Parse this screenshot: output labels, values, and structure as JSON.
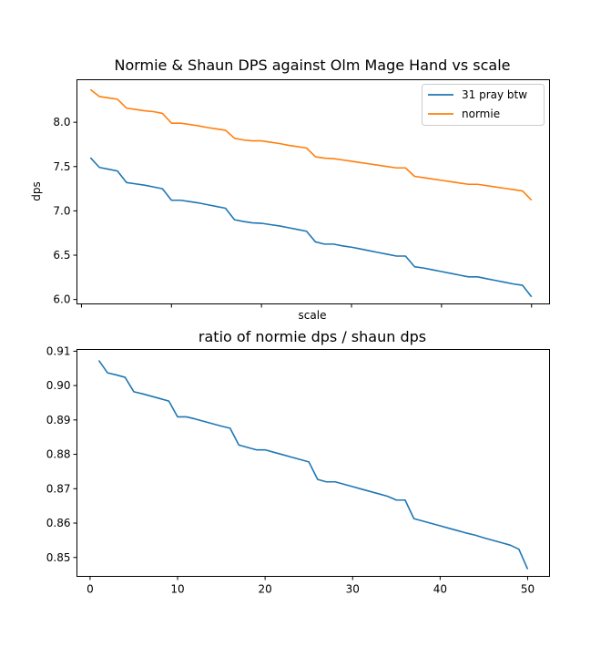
{
  "chart_data": [
    {
      "type": "line",
      "title": "Normie & Shaun DPS against Olm Mage Hand vs scale",
      "xlabel": "scale",
      "ylabel": "dps",
      "xlim": [
        -0.5,
        52
      ],
      "ylim": [
        5.95,
        8.48
      ],
      "xticks": [
        0,
        10,
        20,
        30,
        40,
        50
      ],
      "xtick_labels_visible": false,
      "yticks": [
        6.0,
        6.5,
        7.0,
        7.5,
        8.0
      ],
      "ytick_labels": [
        "6.0",
        "6.5",
        "7.0",
        "7.5",
        "8.0"
      ],
      "legend": {
        "position": "top-right"
      },
      "x": [
        1,
        2,
        3,
        4,
        5,
        6,
        7,
        8,
        9,
        10,
        11,
        12,
        13,
        14,
        15,
        16,
        17,
        18,
        19,
        20,
        21,
        22,
        23,
        24,
        25,
        26,
        27,
        28,
        29,
        30,
        31,
        32,
        33,
        34,
        35,
        36,
        37,
        38,
        39,
        40,
        41,
        42,
        43,
        44,
        45,
        46,
        47,
        48,
        49,
        50
      ],
      "series": [
        {
          "name": "31 pray btw",
          "color": "#1f77b4",
          "values": [
            7.6,
            7.49,
            7.47,
            7.45,
            7.32,
            7.305,
            7.29,
            7.27,
            7.25,
            7.12,
            7.12,
            7.105,
            7.09,
            7.07,
            7.05,
            7.03,
            6.9,
            6.88,
            6.865,
            6.86,
            6.845,
            6.83,
            6.81,
            6.79,
            6.77,
            6.65,
            6.625,
            6.625,
            6.605,
            6.59,
            6.57,
            6.55,
            6.53,
            6.51,
            6.49,
            6.49,
            6.37,
            6.355,
            6.335,
            6.315,
            6.295,
            6.275,
            6.255,
            6.255,
            6.235,
            6.215,
            6.195,
            6.175,
            6.16,
            6.03
          ]
        },
        {
          "name": "normie",
          "color": "#ff7f0e",
          "values": [
            8.37,
            8.29,
            8.275,
            8.26,
            8.16,
            8.145,
            8.13,
            8.12,
            8.1,
            7.99,
            7.99,
            7.975,
            7.96,
            7.94,
            7.925,
            7.91,
            7.82,
            7.8,
            7.79,
            7.79,
            7.775,
            7.76,
            7.74,
            7.725,
            7.71,
            7.61,
            7.595,
            7.59,
            7.575,
            7.56,
            7.545,
            7.53,
            7.515,
            7.5,
            7.485,
            7.485,
            7.39,
            7.375,
            7.36,
            7.345,
            7.33,
            7.315,
            7.3,
            7.3,
            7.285,
            7.27,
            7.255,
            7.24,
            7.225,
            7.12
          ]
        }
      ]
    },
    {
      "type": "line",
      "title": "ratio of normie dps / shaun dps",
      "xlabel": "",
      "ylabel": "",
      "xlim": [
        -1.5,
        52.5
      ],
      "ylim": [
        0.8445,
        0.9105
      ],
      "xticks": [
        0,
        10,
        20,
        30,
        40,
        50
      ],
      "xtick_labels": [
        "0",
        "10",
        "20",
        "30",
        "40",
        "50"
      ],
      "yticks": [
        0.85,
        0.86,
        0.87,
        0.88,
        0.89,
        0.9,
        0.91
      ],
      "ytick_labels": [
        "0.85",
        "0.86",
        "0.87",
        "0.88",
        "0.89",
        "0.90",
        "0.91"
      ],
      "x": [
        1,
        2,
        3,
        4,
        5,
        6,
        7,
        8,
        9,
        10,
        11,
        12,
        13,
        14,
        15,
        16,
        17,
        18,
        19,
        20,
        21,
        22,
        23,
        24,
        25,
        26,
        27,
        28,
        29,
        30,
        31,
        32,
        33,
        34,
        35,
        36,
        37,
        38,
        39,
        40,
        41,
        42,
        43,
        44,
        45,
        46,
        47,
        48,
        49,
        50
      ],
      "series": [
        {
          "color": "#1f77b4",
          "values": [
            0.9073,
            0.9037,
            0.9031,
            0.9024,
            0.8982,
            0.8976,
            0.8969,
            0.8962,
            0.8955,
            0.8909,
            0.8909,
            0.8903,
            0.8896,
            0.8889,
            0.8882,
            0.8876,
            0.8827,
            0.882,
            0.8813,
            0.8813,
            0.8806,
            0.8799,
            0.8792,
            0.8785,
            0.8778,
            0.8727,
            0.872,
            0.872,
            0.8713,
            0.8706,
            0.8699,
            0.8692,
            0.8685,
            0.8678,
            0.8667,
            0.8667,
            0.8613,
            0.8606,
            0.8599,
            0.8592,
            0.8585,
            0.8578,
            0.8571,
            0.8565,
            0.8557,
            0.855,
            0.8543,
            0.8536,
            0.8524,
            0.8466
          ]
        }
      ]
    }
  ]
}
